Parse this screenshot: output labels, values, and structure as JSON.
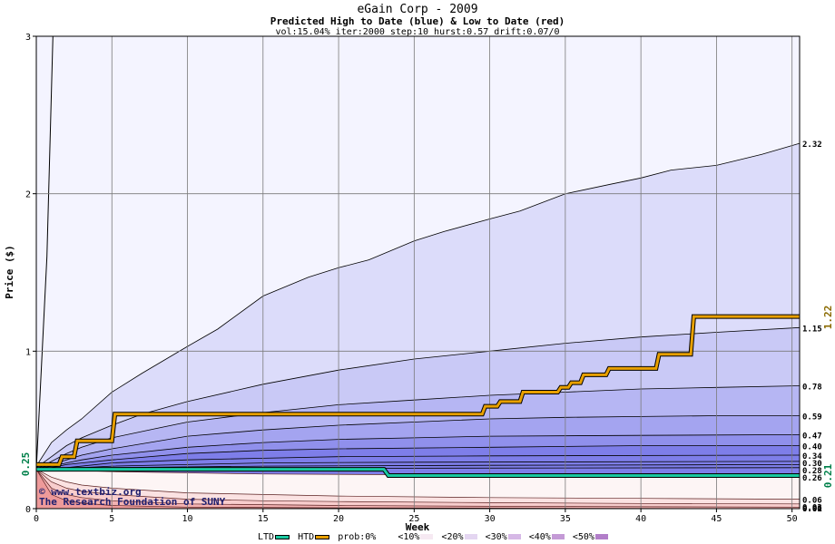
{
  "title": "eGain Corp - 2009",
  "subtitle": "Predicted High to Date (blue) &  Low to Date (red)",
  "params": "vol:15.04% iter:2000 step:10 hurst:0.57 drift:0.07/0",
  "watermark": [
    "© www.textbiz.org",
    "The Research Foundation of SUNY"
  ],
  "colors": {
    "background": "#f4f4ff",
    "grid": "#7a7a7a",
    "htd_line": "#e8a000",
    "ltd_line": "#19c9a0",
    "label_htd": "#8a6a00",
    "label_ltd": "#00804a",
    "blue_bands": [
      "#dcdcfa",
      "#c9c9f6",
      "#b6b6f3",
      "#a4a4f0",
      "#9090ec",
      "#7e7ee9"
    ],
    "red_bands": [
      "#fbe2e2",
      "#f8cdcd",
      "#f3b3b3",
      "#ee9a9a",
      "#e87f7f"
    ]
  },
  "chart_data": {
    "type": "area",
    "xlabel": "Week",
    "ylabel": "Price ($)",
    "xlim": [
      0,
      50.5
    ],
    "ylim": [
      0,
      3
    ],
    "x_ticks": [
      0,
      5,
      10,
      15,
      20,
      25,
      30,
      35,
      40,
      45,
      50
    ],
    "y_ticks": [
      0,
      1,
      2,
      3
    ],
    "start_price": 0.25,
    "start_label": "0.25",
    "htd_end_label": "1.22",
    "ltd_end_label": "0.21",
    "right_labels": [
      "2.32",
      "1.15",
      "0.78",
      "0.59",
      "0.47",
      "0.40",
      "0.34",
      "0.30",
      "0.28",
      "0.26",
      "0.06",
      "0.03",
      "0.01",
      "0.00"
    ],
    "upper_quantiles": [
      {
        "name": "upper envelope",
        "final": 2.32,
        "points": [
          [
            0,
            0.27
          ],
          [
            1,
            0.42
          ],
          [
            2,
            0.5
          ],
          [
            3,
            0.57
          ],
          [
            5,
            0.74
          ],
          [
            7,
            0.86
          ],
          [
            10,
            1.03
          ],
          [
            12,
            1.14
          ],
          [
            15,
            1.35
          ],
          [
            18,
            1.47
          ],
          [
            20,
            1.53
          ],
          [
            22,
            1.58
          ],
          [
            25,
            1.7
          ],
          [
            27,
            1.76
          ],
          [
            30,
            1.84
          ],
          [
            32,
            1.89
          ],
          [
            35,
            2.0
          ],
          [
            38,
            2.06
          ],
          [
            40,
            2.1
          ],
          [
            42,
            2.15
          ],
          [
            45,
            2.18
          ],
          [
            48,
            2.25
          ],
          [
            50.5,
            2.32
          ]
        ]
      },
      {
        "name": "q1",
        "final": 1.15,
        "points": [
          [
            0,
            0.26
          ],
          [
            1,
            0.33
          ],
          [
            2,
            0.4
          ],
          [
            3,
            0.45
          ],
          [
            5,
            0.53
          ],
          [
            7,
            0.6
          ],
          [
            10,
            0.68
          ],
          [
            15,
            0.79
          ],
          [
            20,
            0.88
          ],
          [
            25,
            0.95
          ],
          [
            30,
            1.0
          ],
          [
            35,
            1.05
          ],
          [
            40,
            1.09
          ],
          [
            45,
            1.12
          ],
          [
            50.5,
            1.15
          ]
        ]
      },
      {
        "name": "q2",
        "final": 0.78,
        "points": [
          [
            0,
            0.25
          ],
          [
            1,
            0.3
          ],
          [
            2,
            0.35
          ],
          [
            3,
            0.39
          ],
          [
            5,
            0.45
          ],
          [
            8,
            0.51
          ],
          [
            10,
            0.55
          ],
          [
            15,
            0.61
          ],
          [
            20,
            0.66
          ],
          [
            25,
            0.69
          ],
          [
            30,
            0.72
          ],
          [
            35,
            0.74
          ],
          [
            40,
            0.76
          ],
          [
            45,
            0.77
          ],
          [
            50.5,
            0.78
          ]
        ]
      },
      {
        "name": "q3",
        "final": 0.59,
        "points": [
          [
            0,
            0.25
          ],
          [
            1,
            0.28
          ],
          [
            2,
            0.31
          ],
          [
            3,
            0.34
          ],
          [
            5,
            0.38
          ],
          [
            10,
            0.46
          ],
          [
            15,
            0.5
          ],
          [
            20,
            0.53
          ],
          [
            25,
            0.55
          ],
          [
            30,
            0.57
          ],
          [
            35,
            0.58
          ],
          [
            40,
            0.585
          ],
          [
            45,
            0.59
          ],
          [
            50.5,
            0.59
          ]
        ]
      },
      {
        "name": "q4",
        "final": 0.47,
        "points": [
          [
            0,
            0.25
          ],
          [
            1,
            0.27
          ],
          [
            2,
            0.29
          ],
          [
            3,
            0.31
          ],
          [
            5,
            0.34
          ],
          [
            10,
            0.39
          ],
          [
            15,
            0.42
          ],
          [
            20,
            0.44
          ],
          [
            25,
            0.45
          ],
          [
            30,
            0.46
          ],
          [
            40,
            0.465
          ],
          [
            50.5,
            0.47
          ]
        ]
      },
      {
        "name": "q5",
        "final": 0.4,
        "points": [
          [
            0,
            0.25
          ],
          [
            1,
            0.26
          ],
          [
            2,
            0.28
          ],
          [
            3,
            0.29
          ],
          [
            5,
            0.31
          ],
          [
            10,
            0.35
          ],
          [
            15,
            0.37
          ],
          [
            20,
            0.38
          ],
          [
            30,
            0.39
          ],
          [
            40,
            0.4
          ],
          [
            50.5,
            0.4
          ]
        ]
      },
      {
        "name": "q6",
        "final": 0.34,
        "points": [
          [
            0,
            0.25
          ],
          [
            2,
            0.26
          ],
          [
            5,
            0.29
          ],
          [
            10,
            0.31
          ],
          [
            15,
            0.32
          ],
          [
            20,
            0.33
          ],
          [
            30,
            0.335
          ],
          [
            50.5,
            0.34
          ]
        ]
      },
      {
        "name": "q7",
        "final": 0.3,
        "points": [
          [
            0,
            0.25
          ],
          [
            3,
            0.26
          ],
          [
            5,
            0.27
          ],
          [
            10,
            0.28
          ],
          [
            15,
            0.29
          ],
          [
            25,
            0.295
          ],
          [
            50.5,
            0.3
          ]
        ]
      },
      {
        "name": "q8",
        "final": 0.28,
        "points": [
          [
            0,
            0.25
          ],
          [
            5,
            0.26
          ],
          [
            15,
            0.27
          ],
          [
            30,
            0.275
          ],
          [
            50.5,
            0.28
          ]
        ]
      },
      {
        "name": "q9",
        "final": 0.26,
        "points": [
          [
            0,
            0.25
          ],
          [
            10,
            0.255
          ],
          [
            50.5,
            0.26
          ]
        ]
      }
    ],
    "lower_quantiles": [
      {
        "name": "l1",
        "final": 0.21,
        "points": [
          [
            0,
            0.25
          ],
          [
            5,
            0.235
          ],
          [
            15,
            0.22
          ],
          [
            30,
            0.213
          ],
          [
            50.5,
            0.21
          ]
        ]
      },
      {
        "name": "l2",
        "final": 0.06,
        "points": [
          [
            0,
            0.25
          ],
          [
            1,
            0.2
          ],
          [
            2,
            0.17
          ],
          [
            3,
            0.15
          ],
          [
            5,
            0.13
          ],
          [
            10,
            0.1
          ],
          [
            15,
            0.09
          ],
          [
            20,
            0.08
          ],
          [
            30,
            0.07
          ],
          [
            40,
            0.065
          ],
          [
            50.5,
            0.06
          ]
        ]
      },
      {
        "name": "l3",
        "final": 0.03,
        "points": [
          [
            0,
            0.25
          ],
          [
            1,
            0.17
          ],
          [
            2,
            0.13
          ],
          [
            3,
            0.11
          ],
          [
            5,
            0.09
          ],
          [
            10,
            0.06
          ],
          [
            15,
            0.05
          ],
          [
            20,
            0.045
          ],
          [
            30,
            0.038
          ],
          [
            40,
            0.033
          ],
          [
            50.5,
            0.03
          ]
        ]
      },
      {
        "name": "l4",
        "final": 0.01,
        "points": [
          [
            0,
            0.25
          ],
          [
            1,
            0.13
          ],
          [
            2,
            0.09
          ],
          [
            3,
            0.07
          ],
          [
            5,
            0.05
          ],
          [
            10,
            0.03
          ],
          [
            20,
            0.02
          ],
          [
            30,
            0.015
          ],
          [
            50.5,
            0.01
          ]
        ]
      },
      {
        "name": "l5",
        "final": 0.0,
        "points": [
          [
            0,
            0.25
          ],
          [
            1,
            0.09
          ],
          [
            2,
            0.05
          ],
          [
            3,
            0.035
          ],
          [
            5,
            0.02
          ],
          [
            10,
            0.01
          ],
          [
            20,
            0.005
          ],
          [
            50.5,
            0.0
          ]
        ]
      }
    ],
    "steep_line": {
      "name": "max",
      "points": [
        [
          0,
          0.25
        ],
        [
          0.7,
          1.6
        ],
        [
          1.1,
          3.0
        ]
      ]
    },
    "htd": {
      "name": "HTD",
      "points": [
        [
          0,
          0.28
        ],
        [
          1.5,
          0.28
        ],
        [
          1.7,
          0.33
        ],
        [
          2.5,
          0.33
        ],
        [
          2.7,
          0.43
        ],
        [
          5,
          0.43
        ],
        [
          5.2,
          0.6
        ],
        [
          29.5,
          0.6
        ],
        [
          29.7,
          0.65
        ],
        [
          30.5,
          0.65
        ],
        [
          30.7,
          0.68
        ],
        [
          32,
          0.68
        ],
        [
          32.2,
          0.74
        ],
        [
          34.5,
          0.74
        ],
        [
          34.7,
          0.77
        ],
        [
          35.2,
          0.77
        ],
        [
          35.4,
          0.8
        ],
        [
          36,
          0.8
        ],
        [
          36.2,
          0.85
        ],
        [
          37.7,
          0.85
        ],
        [
          37.9,
          0.89
        ],
        [
          41,
          0.89
        ],
        [
          41.2,
          0.98
        ],
        [
          43.3,
          0.98
        ],
        [
          43.5,
          1.22
        ],
        [
          50.5,
          1.22
        ]
      ]
    },
    "ltd": {
      "name": "LTD",
      "points": [
        [
          0,
          0.25
        ],
        [
          23,
          0.25
        ],
        [
          23.3,
          0.21
        ],
        [
          50.5,
          0.21
        ]
      ]
    }
  },
  "legend": {
    "items": [
      {
        "label": "LTD",
        "kind": "line",
        "color": "#19c9a0"
      },
      {
        "label": "HTD",
        "kind": "line",
        "color": "#e8a000"
      },
      {
        "label": "prob:0%",
        "kind": "fill",
        "color": "#ffffff"
      },
      {
        "label": "<10%",
        "kind": "fill",
        "color": "#f6e9f2"
      },
      {
        "label": "<20%",
        "kind": "fill",
        "color": "#e4d6f1"
      },
      {
        "label": "<30%",
        "kind": "fill",
        "color": "#d6b8e6"
      },
      {
        "label": "<40%",
        "kind": "fill",
        "color": "#c49ad6"
      },
      {
        "label": "<50%",
        "kind": "fill",
        "color": "#b27ec9"
      }
    ]
  }
}
